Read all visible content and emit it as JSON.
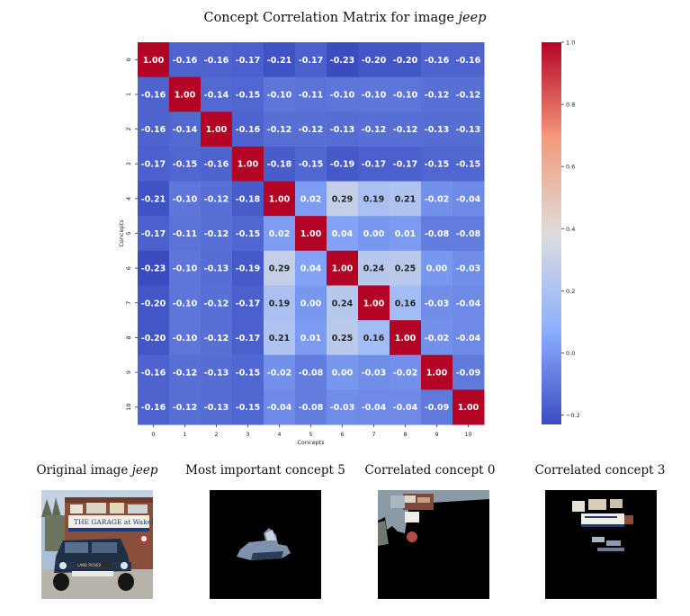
{
  "title": {
    "prefix": "Concept Correlation Matrix for image ",
    "image_name": "jeep"
  },
  "chart_data": {
    "type": "heatmap",
    "title": "Concept Correlation Matrix for image jeep",
    "xlabel": "Concepts",
    "ylabel": "Concepts",
    "x_categories": [
      "0",
      "1",
      "2",
      "3",
      "4",
      "5",
      "6",
      "7",
      "8",
      "9",
      "10"
    ],
    "y_categories": [
      "0",
      "1",
      "2",
      "3",
      "4",
      "5",
      "6",
      "7",
      "8",
      "9",
      "10"
    ],
    "values": [
      [
        1.0,
        -0.16,
        -0.16,
        -0.17,
        -0.21,
        -0.17,
        -0.23,
        -0.2,
        -0.2,
        -0.16,
        -0.16
      ],
      [
        -0.16,
        1.0,
        -0.14,
        -0.15,
        -0.1,
        -0.11,
        -0.1,
        -0.1,
        -0.1,
        -0.12,
        -0.12
      ],
      [
        -0.16,
        -0.14,
        1.0,
        -0.16,
        -0.12,
        -0.12,
        -0.13,
        -0.12,
        -0.12,
        -0.13,
        -0.13
      ],
      [
        -0.17,
        -0.15,
        -0.16,
        1.0,
        -0.18,
        -0.15,
        -0.19,
        -0.17,
        -0.17,
        -0.15,
        -0.15
      ],
      [
        -0.21,
        -0.1,
        -0.12,
        -0.18,
        1.0,
        0.02,
        0.29,
        0.19,
        0.21,
        -0.02,
        -0.04
      ],
      [
        -0.17,
        -0.11,
        -0.12,
        -0.15,
        0.02,
        1.0,
        0.04,
        0.0,
        0.01,
        -0.08,
        -0.08
      ],
      [
        -0.23,
        -0.1,
        -0.13,
        -0.19,
        0.29,
        0.04,
        1.0,
        0.24,
        0.25,
        -0.0,
        -0.03
      ],
      [
        -0.2,
        -0.1,
        -0.12,
        -0.17,
        0.19,
        0.0,
        0.24,
        1.0,
        0.16,
        -0.03,
        -0.04
      ],
      [
        -0.2,
        -0.1,
        -0.12,
        -0.17,
        0.21,
        0.01,
        0.25,
        0.16,
        1.0,
        -0.02,
        -0.04
      ],
      [
        -0.16,
        -0.12,
        -0.13,
        -0.15,
        -0.02,
        -0.08,
        -0.0,
        -0.03,
        -0.02,
        1.0,
        -0.09
      ],
      [
        -0.16,
        -0.12,
        -0.13,
        -0.15,
        -0.04,
        -0.08,
        -0.03,
        -0.04,
        -0.04,
        -0.09,
        1.0
      ]
    ],
    "colormap": "coolwarm",
    "vmin": -0.23,
    "vmax": 1.0,
    "colorbar_ticks": [
      1.0,
      0.8,
      0.6,
      0.4,
      0.2,
      0.0,
      -0.2
    ],
    "colorbar_tick_labels": [
      "1.0",
      "0.8",
      "0.6",
      "0.4",
      "0.2",
      "0.0",
      "−0.2"
    ]
  },
  "panels": [
    {
      "caption_prefix": "Original image ",
      "caption_italic": "jeep"
    },
    {
      "caption_prefix": "Most important concept 5",
      "caption_italic": ""
    },
    {
      "caption_prefix": "Correlated concept 0",
      "caption_italic": ""
    },
    {
      "caption_prefix": "Correlated concept 3",
      "caption_italic": ""
    }
  ],
  "photo_text": {
    "banner": "THE GARAGE at Wakeley",
    "plate": "LAND ROVER"
  }
}
